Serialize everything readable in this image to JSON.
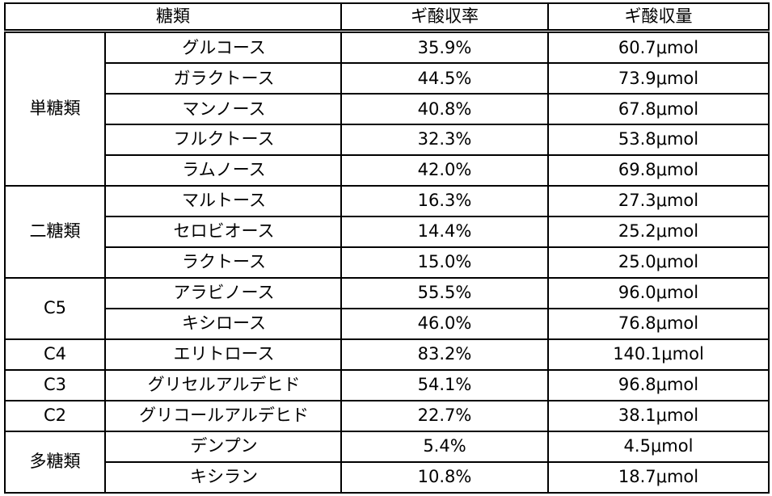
{
  "headers": {
    "sugar": "糖類",
    "yield_rate": "ギ酸収率",
    "yield_amount": "ギ酸収量"
  },
  "groups": [
    {
      "label": "単糖類",
      "rows": [
        {
          "name": "グルコース",
          "rate": "35.9%",
          "amount": "60.7μmol"
        },
        {
          "name": "ガラクトース",
          "rate": "44.5%",
          "amount": "73.9μmol"
        },
        {
          "name": "マンノース",
          "rate": "40.8%",
          "amount": "67.8μmol"
        },
        {
          "name": "フルクトース",
          "rate": "32.3%",
          "amount": "53.8μmol"
        },
        {
          "name": "ラムノース",
          "rate": "42.0%",
          "amount": "69.8μmol"
        }
      ]
    },
    {
      "label": "二糖類",
      "rows": [
        {
          "name": "マルトース",
          "rate": "16.3%",
          "amount": "27.3μmol"
        },
        {
          "name": "セロビオース",
          "rate": "14.4%",
          "amount": "25.2μmol"
        },
        {
          "name": "ラクトース",
          "rate": "15.0%",
          "amount": "25.0μmol"
        }
      ]
    },
    {
      "label": "C5",
      "rows": [
        {
          "name": "アラビノース",
          "rate": "55.5%",
          "amount": "96.0μmol"
        },
        {
          "name": "キシロース",
          "rate": "46.0%",
          "amount": "76.8μmol"
        }
      ]
    },
    {
      "label": "C4",
      "rows": [
        {
          "name": "エリトロース",
          "rate": "83.2%",
          "amount": "140.1μmol"
        }
      ]
    },
    {
      "label": "C3",
      "rows": [
        {
          "name": "グリセルアルデヒド",
          "rate": "54.1%",
          "amount": "96.8μmol"
        }
      ]
    },
    {
      "label": "C2",
      "rows": [
        {
          "name": "グリコールアルデヒド",
          "rate": "22.7%",
          "amount": "38.1μmol"
        }
      ]
    },
    {
      "label": "多糖類",
      "rows": [
        {
          "name": "デンプン",
          "rate": "5.4%",
          "amount": "4.5μmol"
        },
        {
          "name": "キシラン",
          "rate": "10.8%",
          "amount": "18.7μmol"
        }
      ]
    }
  ]
}
